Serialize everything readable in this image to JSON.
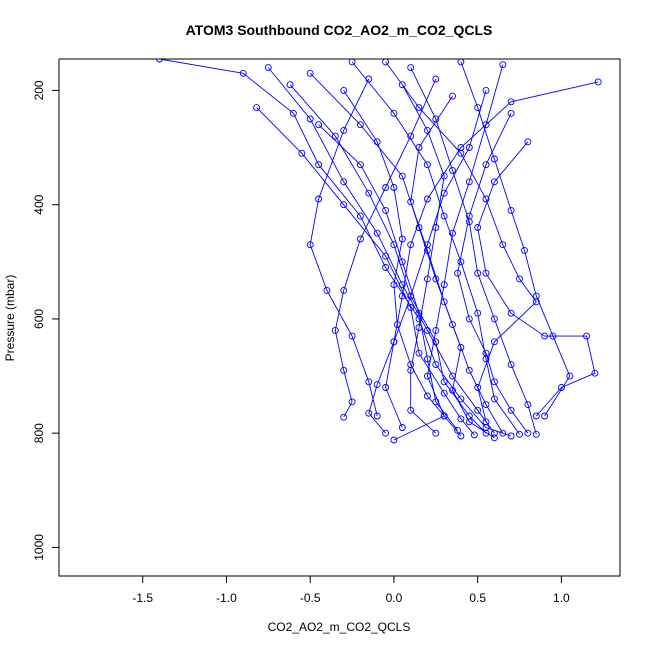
{
  "chart_data": {
    "type": "scatter",
    "title": "ATOM3 Southbound CO2_AO2_m_CO2_QCLS",
    "xlabel": "CO2_AO2_m_CO2_QCLS",
    "ylabel": "Pressure (mbar)",
    "xlim": [
      -2.0,
      1.35
    ],
    "ylim": [
      1050,
      145
    ],
    "y_reversed": true,
    "grid": false,
    "legend": "none",
    "x_ticks": [
      -1.5,
      -1.0,
      -0.5,
      0.0,
      0.5,
      1.0
    ],
    "x_tick_labels": [
      "-1.5",
      "-1.0",
      "-0.5",
      "0.0",
      "0.5",
      "1.0"
    ],
    "y_ticks": [
      200,
      400,
      600,
      800,
      1000
    ],
    "y_tick_labels": [
      "200",
      "400",
      "600",
      "800",
      "1000"
    ],
    "marker": "open-circle",
    "connected": true,
    "color": "#0000ff",
    "profiles": [
      [
        [
          -1.4,
          145
        ],
        [
          -0.9,
          170
        ],
        [
          -0.6,
          240
        ],
        [
          -0.45,
          330
        ],
        [
          -0.2,
          420
        ],
        [
          -0.05,
          510
        ],
        [
          0.15,
          600
        ],
        [
          0.25,
          680
        ],
        [
          0.4,
          740
        ],
        [
          0.55,
          790
        ],
        [
          0.7,
          805
        ]
      ],
      [
        [
          -0.75,
          160
        ],
        [
          -0.5,
          250
        ],
        [
          -0.3,
          360
        ],
        [
          -0.1,
          450
        ],
        [
          0.05,
          540
        ],
        [
          0.2,
          620
        ],
        [
          0.35,
          700
        ],
        [
          0.5,
          760
        ],
        [
          0.6,
          800
        ]
      ],
      [
        [
          -0.62,
          190
        ],
        [
          -0.35,
          280
        ],
        [
          -0.15,
          380
        ],
        [
          0.0,
          470
        ],
        [
          0.1,
          560
        ],
        [
          0.25,
          640
        ],
        [
          0.3,
          710
        ],
        [
          0.45,
          770
        ],
        [
          0.55,
          800
        ]
      ],
      [
        [
          -0.82,
          230
        ],
        [
          -0.55,
          310
        ],
        [
          -0.3,
          400
        ],
        [
          -0.05,
          490
        ],
        [
          0.1,
          580
        ],
        [
          0.15,
          660
        ],
        [
          0.3,
          730
        ],
        [
          0.4,
          775
        ],
        [
          0.48,
          803
        ]
      ],
      [
        [
          -0.5,
          170
        ],
        [
          -0.2,
          260
        ],
        [
          0.05,
          350
        ],
        [
          0.15,
          440
        ],
        [
          0.25,
          530
        ],
        [
          0.35,
          610
        ],
        [
          0.45,
          690
        ],
        [
          0.55,
          750
        ],
        [
          0.65,
          800
        ]
      ],
      [
        [
          -0.25,
          150
        ],
        [
          0.0,
          240
        ],
        [
          0.2,
          330
        ],
        [
          0.3,
          420
        ],
        [
          0.4,
          500
        ],
        [
          0.5,
          590
        ],
        [
          0.55,
          670
        ],
        [
          0.6,
          740
        ],
        [
          0.75,
          802
        ]
      ],
      [
        [
          0.1,
          160
        ],
        [
          0.25,
          250
        ],
        [
          0.35,
          340
        ],
        [
          0.45,
          430
        ],
        [
          0.5,
          520
        ],
        [
          0.6,
          600
        ],
        [
          0.7,
          680
        ],
        [
          0.8,
          750
        ],
        [
          0.85,
          802
        ]
      ],
      [
        [
          0.4,
          150
        ],
        [
          0.5,
          230
        ],
        [
          0.6,
          320
        ],
        [
          0.7,
          410
        ],
        [
          0.78,
          480
        ],
        [
          0.85,
          560
        ],
        [
          0.95,
          630
        ],
        [
          1.05,
          700
        ],
        [
          0.9,
          770
        ]
      ],
      [
        [
          0.65,
          155
        ],
        [
          0.55,
          260
        ],
        [
          0.45,
          360
        ],
        [
          0.35,
          450
        ],
        [
          0.3,
          540
        ],
        [
          0.25,
          620
        ],
        [
          0.2,
          700
        ],
        [
          0.3,
          770
        ],
        [
          0.4,
          805
        ]
      ],
      [
        [
          1.22,
          185
        ],
        [
          0.7,
          220
        ],
        [
          0.4,
          300
        ],
        [
          0.2,
          390
        ],
        [
          0.1,
          470
        ],
        [
          0.05,
          560
        ],
        [
          0.0,
          640
        ],
        [
          -0.05,
          720
        ],
        [
          0.05,
          790
        ]
      ],
      [
        [
          -0.15,
          180
        ],
        [
          -0.3,
          270
        ],
        [
          -0.45,
          390
        ],
        [
          -0.5,
          470
        ],
        [
          -0.4,
          550
        ],
        [
          -0.25,
          630
        ],
        [
          -0.15,
          710
        ],
        [
          -0.1,
          770
        ]
      ],
      [
        [
          0.25,
          180
        ],
        [
          0.1,
          280
        ],
        [
          -0.05,
          370
        ],
        [
          -0.2,
          460
        ],
        [
          -0.3,
          550
        ],
        [
          -0.35,
          620
        ],
        [
          -0.3,
          690
        ],
        [
          -0.25,
          745
        ],
        [
          -0.3,
          772
        ]
      ],
      [
        [
          0.7,
          240
        ],
        [
          0.55,
          330
        ],
        [
          0.45,
          420
        ],
        [
          0.38,
          520
        ],
        [
          0.45,
          600
        ],
        [
          0.55,
          660
        ],
        [
          0.6,
          710
        ],
        [
          0.7,
          760
        ],
        [
          0.8,
          800
        ]
      ],
      [
        [
          0.8,
          290
        ],
        [
          0.6,
          360
        ],
        [
          0.5,
          440
        ],
        [
          0.55,
          520
        ],
        [
          0.7,
          590
        ],
        [
          0.9,
          630
        ],
        [
          1.15,
          630
        ],
        [
          1.2,
          695
        ],
        [
          1.0,
          720
        ],
        [
          0.85,
          770
        ]
      ],
      [
        [
          -0.3,
          200
        ],
        [
          -0.1,
          290
        ],
        [
          0.0,
          370
        ],
        [
          0.05,
          460
        ],
        [
          0.0,
          540
        ],
        [
          0.02,
          610
        ],
        [
          0.1,
          680
        ],
        [
          0.2,
          735
        ],
        [
          0.3,
          770
        ],
        [
          0.0,
          812
        ]
      ],
      [
        [
          0.35,
          210
        ],
        [
          0.15,
          300
        ],
        [
          0.1,
          395
        ],
        [
          0.2,
          480
        ],
        [
          0.3,
          570
        ],
        [
          0.4,
          650
        ],
        [
          0.35,
          725
        ],
        [
          0.45,
          780
        ],
        [
          0.6,
          808
        ]
      ],
      [
        [
          -0.45,
          260
        ],
        [
          -0.2,
          330
        ],
        [
          -0.05,
          410
        ],
        [
          0.05,
          500
        ],
        [
          0.15,
          590
        ],
        [
          0.2,
          670
        ],
        [
          0.25,
          745
        ],
        [
          0.38,
          795
        ]
      ],
      [
        [
          0.05,
          190
        ],
        [
          0.2,
          270
        ],
        [
          0.3,
          350
        ],
        [
          0.25,
          440
        ],
        [
          0.2,
          530
        ],
        [
          0.15,
          615
        ],
        [
          0.1,
          690
        ],
        [
          0.1,
          760
        ],
        [
          0.25,
          800
        ]
      ],
      [
        [
          0.55,
          200
        ],
        [
          0.45,
          300
        ],
        [
          0.3,
          380
        ],
        [
          0.2,
          470
        ],
        [
          0.1,
          560
        ],
        [
          0.0,
          640
        ],
        [
          -0.1,
          715
        ],
        [
          -0.15,
          765
        ],
        [
          -0.05,
          800
        ]
      ],
      [
        [
          -0.05,
          150
        ],
        [
          0.15,
          230
        ],
        [
          0.4,
          310
        ],
        [
          0.55,
          390
        ],
        [
          0.65,
          470
        ],
        [
          0.75,
          530
        ],
        [
          0.85,
          570
        ],
        [
          0.6,
          640
        ],
        [
          0.5,
          720
        ],
        [
          0.55,
          780
        ]
      ]
    ]
  }
}
